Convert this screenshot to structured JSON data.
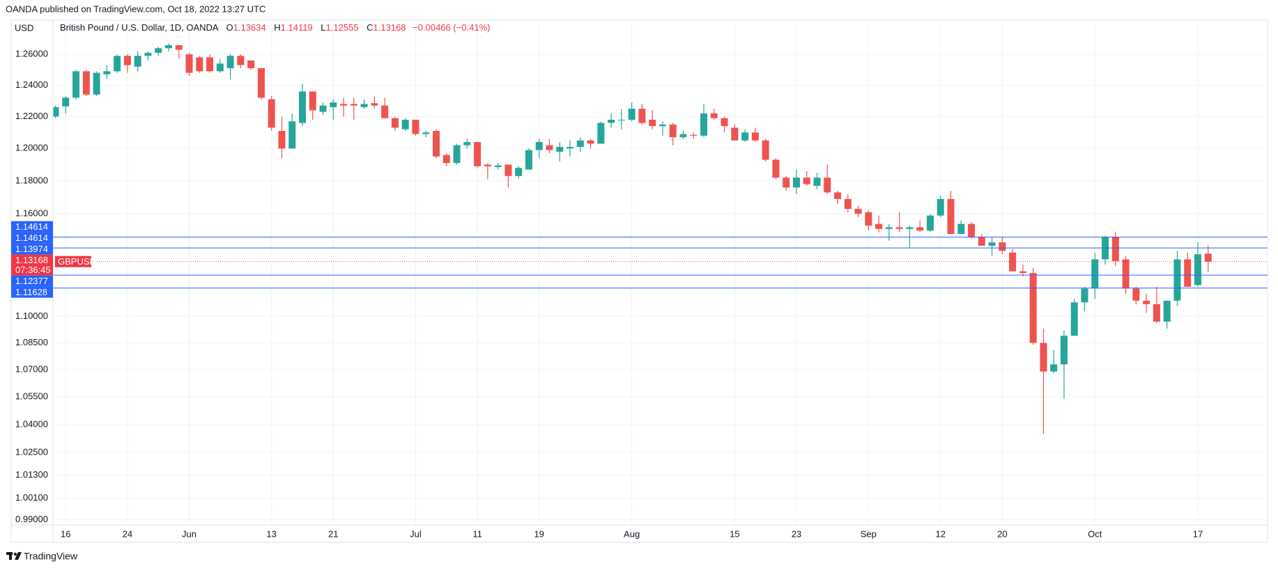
{
  "header": "OANDA published on TradingView.com, Oct 18, 2022 13:27 UTC",
  "footer": "TradingView",
  "chart_data": {
    "type": "candlestick",
    "currency": "USD",
    "symbol_title": "British Pound / U.S. Dollar, 1D, OANDA",
    "ohlc_letters": [
      "O",
      "H",
      "L",
      "C"
    ],
    "change": "−0.00466 (−0.41%)",
    "ticker": "GBPUSD",
    "countdown": "07:36:45",
    "log_scale": true,
    "grid": true,
    "up_color": "#26a69a",
    "down_color": "#ef5350",
    "line_color": "#2962ff",
    "last_price_color": "#f23645",
    "ylim": [
      0.9873,
      1.2825
    ],
    "yticks": [
      {
        "value": 1.26,
        "label": "1.26000"
      },
      {
        "value": 1.24,
        "label": "1.24000"
      },
      {
        "value": 1.22,
        "label": "1.22000"
      },
      {
        "value": 1.2,
        "label": "1.20000"
      },
      {
        "value": 1.18,
        "label": "1.18000"
      },
      {
        "value": 1.16,
        "label": "1.16000"
      },
      {
        "value": 1.1,
        "label": "1.10000"
      },
      {
        "value": 1.085,
        "label": "1.08500"
      },
      {
        "value": 1.07,
        "label": "1.07000"
      },
      {
        "value": 1.055,
        "label": "1.05500"
      },
      {
        "value": 1.04,
        "label": "1.04000"
      },
      {
        "value": 1.025,
        "label": "1.02500"
      },
      {
        "value": 1.013,
        "label": "1.01300"
      },
      {
        "value": 1.001,
        "label": "1.00100"
      },
      {
        "value": 0.99,
        "label": "0.99000"
      }
    ],
    "horizontal_lines": [
      1.14614,
      1.14614,
      1.13974,
      1.12377,
      1.11628
    ],
    "last_price": 1.13168,
    "categories": [
      null,
      "16",
      null,
      null,
      null,
      null,
      null,
      "24",
      null,
      null,
      null,
      null,
      null,
      "Jun",
      null,
      null,
      null,
      null,
      null,
      null,
      null,
      "13",
      null,
      null,
      null,
      null,
      null,
      "21",
      null,
      null,
      null,
      null,
      null,
      null,
      null,
      "Jul",
      null,
      null,
      null,
      null,
      null,
      "11",
      null,
      null,
      null,
      null,
      null,
      "19",
      null,
      null,
      null,
      null,
      null,
      null,
      null,
      null,
      "Aug",
      null,
      null,
      null,
      null,
      null,
      null,
      null,
      null,
      null,
      "15",
      null,
      null,
      null,
      null,
      null,
      "23",
      null,
      null,
      null,
      null,
      null,
      null,
      "Sep",
      null,
      null,
      null,
      null,
      null,
      null,
      "12",
      null,
      null,
      null,
      null,
      null,
      "20",
      null,
      null,
      null,
      null,
      null,
      null,
      null,
      null,
      "Oct",
      null,
      null,
      null,
      null,
      null,
      null,
      null,
      null,
      null,
      "17",
      null
    ],
    "open": [
      1.22,
      1.2265,
      1.232,
      1.249,
      1.234,
      1.247,
      1.249,
      1.259,
      1.252,
      1.259,
      1.261,
      1.264,
      1.266,
      1.26,
      1.258,
      1.258,
      1.249,
      1.251,
      1.259,
      1.256,
      1.251,
      1.231,
      1.211,
      1.2,
      1.216,
      1.236,
      1.223,
      1.226,
      1.228,
      1.228,
      1.226,
      1.2285,
      1.227,
      1.219,
      1.212,
      1.218,
      1.209,
      1.211,
      1.196,
      1.191,
      1.202,
      1.204,
      1.19,
      1.1885,
      1.19,
      1.183,
      1.187,
      1.199,
      1.202,
      1.198,
      1.2,
      1.201,
      1.205,
      1.203,
      1.216,
      1.218,
      1.218,
      1.225,
      1.218,
      1.214,
      1.215,
      1.207,
      1.2085,
      1.208,
      1.222,
      1.219,
      1.213,
      1.205,
      1.21,
      1.205,
      1.193,
      1.182,
      1.176,
      1.182,
      1.177,
      1.182,
      1.173,
      1.169,
      1.163,
      1.161,
      1.154,
      1.151,
      1.152,
      1.151,
      1.152,
      1.15,
      1.159,
      1.169,
      1.148,
      1.154,
      1.146,
      1.141,
      1.143,
      1.137,
      1.126,
      1.125,
      1.085,
      1.069,
      1.073,
      1.089,
      1.108,
      1.116,
      1.133,
      1.146,
      1.133,
      1.116,
      1.109,
      1.107,
      1.097,
      1.109,
      1.133,
      1.118,
      1.13634
    ],
    "high": [
      1.227,
      1.233,
      1.25,
      1.25,
      1.249,
      1.253,
      1.26,
      1.26,
      1.262,
      1.262,
      1.265,
      1.267,
      1.266,
      1.261,
      1.259,
      1.26,
      1.257,
      1.26,
      1.26,
      1.256,
      1.251,
      1.233,
      1.22,
      1.222,
      1.241,
      1.236,
      1.229,
      1.231,
      1.232,
      1.232,
      1.231,
      1.233,
      1.232,
      1.22,
      1.219,
      1.218,
      1.211,
      1.212,
      1.197,
      1.203,
      1.206,
      1.204,
      1.191,
      1.191,
      1.19,
      1.189,
      1.2,
      1.206,
      1.206,
      1.204,
      1.205,
      1.207,
      1.206,
      1.217,
      1.222,
      1.225,
      1.229,
      1.228,
      1.224,
      1.217,
      1.216,
      1.211,
      1.21,
      1.228,
      1.225,
      1.22,
      1.215,
      1.212,
      1.213,
      1.206,
      1.194,
      1.183,
      1.187,
      1.186,
      1.185,
      1.19,
      1.174,
      1.172,
      1.165,
      1.162,
      1.159,
      1.154,
      1.161,
      1.153,
      1.156,
      1.16,
      1.171,
      1.174,
      1.156,
      1.155,
      1.148,
      1.146,
      1.146,
      1.139,
      1.13,
      1.128,
      1.093,
      1.081,
      1.092,
      1.11,
      1.117,
      1.137,
      1.147,
      1.149,
      1.135,
      1.117,
      1.113,
      1.117,
      1.109,
      1.138,
      1.137,
      1.143,
      1.14119
    ],
    "low": [
      1.219,
      1.222,
      1.231,
      1.233,
      1.233,
      1.244,
      1.248,
      1.248,
      1.249,
      1.256,
      1.259,
      1.262,
      1.257,
      1.246,
      1.248,
      1.248,
      1.248,
      1.244,
      1.251,
      1.25,
      1.231,
      1.211,
      1.194,
      1.2,
      1.214,
      1.218,
      1.221,
      1.218,
      1.22,
      1.218,
      1.225,
      1.225,
      1.219,
      1.211,
      1.211,
      1.208,
      1.207,
      1.194,
      1.189,
      1.19,
      1.2,
      1.188,
      1.181,
      1.187,
      1.176,
      1.181,
      1.187,
      1.194,
      1.197,
      1.192,
      1.195,
      1.198,
      1.2,
      1.203,
      1.213,
      1.212,
      1.217,
      1.215,
      1.212,
      1.208,
      1.202,
      1.206,
      1.206,
      1.207,
      1.218,
      1.21,
      1.205,
      1.204,
      1.204,
      1.192,
      1.181,
      1.174,
      1.172,
      1.177,
      1.175,
      1.172,
      1.166,
      1.161,
      1.158,
      1.15,
      1.149,
      1.144,
      1.149,
      1.14,
      1.149,
      1.149,
      1.158,
      1.148,
      1.148,
      1.145,
      1.141,
      1.135,
      1.136,
      1.126,
      1.123,
      1.084,
      1.035,
      1.068,
      1.054,
      1.089,
      1.103,
      1.11,
      1.13,
      1.129,
      1.113,
      1.107,
      1.102,
      1.096,
      1.093,
      1.106,
      1.117,
      1.117,
      1.12555
    ],
    "close": [
      1.226,
      1.232,
      1.249,
      1.234,
      1.248,
      1.249,
      1.259,
      1.253,
      1.259,
      1.261,
      1.264,
      1.266,
      1.263,
      1.248,
      1.249,
      1.249,
      1.254,
      1.259,
      1.253,
      1.251,
      1.232,
      1.213,
      1.2,
      1.217,
      1.236,
      1.224,
      1.227,
      1.229,
      1.227,
      1.227,
      1.228,
      1.227,
      1.219,
      1.213,
      1.218,
      1.209,
      1.21,
      1.195,
      1.191,
      1.202,
      1.204,
      1.189,
      1.189,
      1.1895,
      1.183,
      1.188,
      1.199,
      1.204,
      1.199,
      1.201,
      1.201,
      1.205,
      1.203,
      1.216,
      1.218,
      1.218,
      1.225,
      1.216,
      1.214,
      1.215,
      1.207,
      1.209,
      1.208,
      1.222,
      1.219,
      1.214,
      1.205,
      1.21,
      1.205,
      1.193,
      1.182,
      1.176,
      1.182,
      1.178,
      1.182,
      1.173,
      1.169,
      1.163,
      1.16,
      1.153,
      1.151,
      1.152,
      1.151,
      1.152,
      1.15,
      1.159,
      1.169,
      1.148,
      1.154,
      1.146,
      1.141,
      1.143,
      1.138,
      1.126,
      1.125,
      1.085,
      1.069,
      1.073,
      1.089,
      1.108,
      1.116,
      1.133,
      1.146,
      1.132,
      1.116,
      1.109,
      1.107,
      1.097,
      1.109,
      1.133,
      1.117,
      1.136,
      1.13168
    ]
  }
}
